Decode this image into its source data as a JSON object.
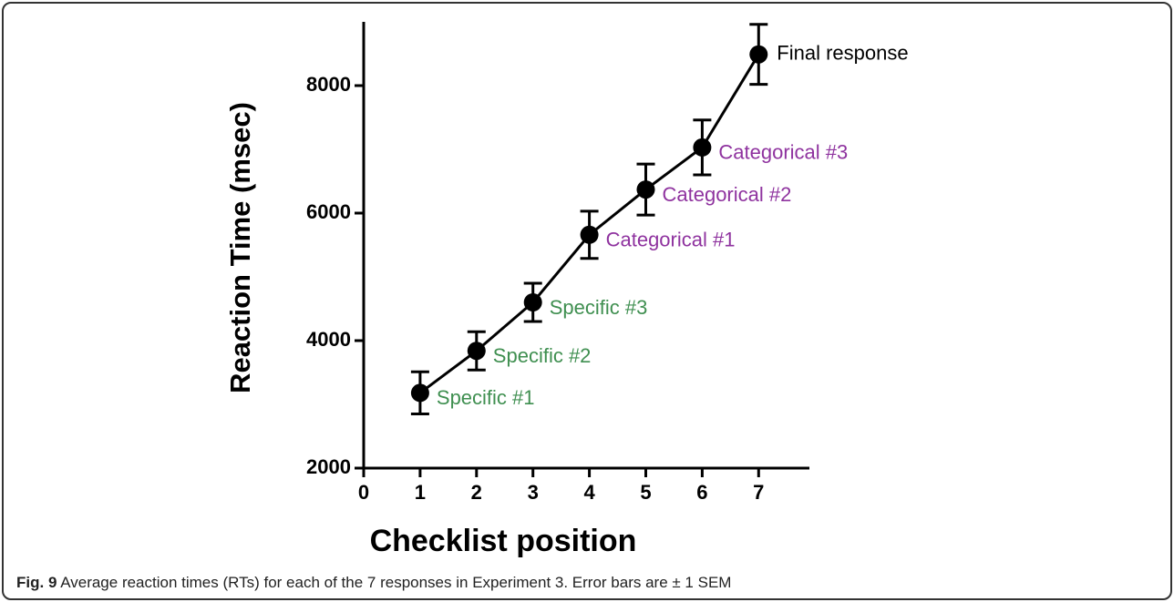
{
  "chart_data": {
    "type": "line",
    "x_label": "Checklist position",
    "y_label": "Reaction Time (msec)",
    "x": [
      1,
      2,
      3,
      4,
      5,
      6,
      7
    ],
    "series": [
      {
        "color": "#000000",
        "values": [
          3180,
          3840,
          4600,
          5660,
          6370,
          7030,
          8490
        ],
        "errors": [
          330,
          300,
          300,
          370,
          400,
          430,
          470
        ],
        "point_labels": [
          "Specific #1",
          "Specific #2",
          "Specific #3",
          "Categorical #1",
          "Categorical #2",
          "Categorical #3",
          "Final response"
        ],
        "point_label_colors": [
          "#3f8f50",
          "#3f8f50",
          "#3f8f50",
          "#8f339f",
          "#8f339f",
          "#8f339f",
          "#000000"
        ]
      }
    ],
    "xlim": [
      0,
      7.9
    ],
    "xticks": [
      0,
      1,
      2,
      3,
      4,
      5,
      6,
      7
    ],
    "ylim": [
      2000,
      9000
    ],
    "yticks": [
      2000,
      4000,
      6000,
      8000
    ],
    "grid": false
  },
  "caption": {
    "label": "Fig. 9",
    "text": "Average reaction times (RTs) for each of the 7 responses in Experiment 3. Error bars are ± 1 SEM"
  }
}
